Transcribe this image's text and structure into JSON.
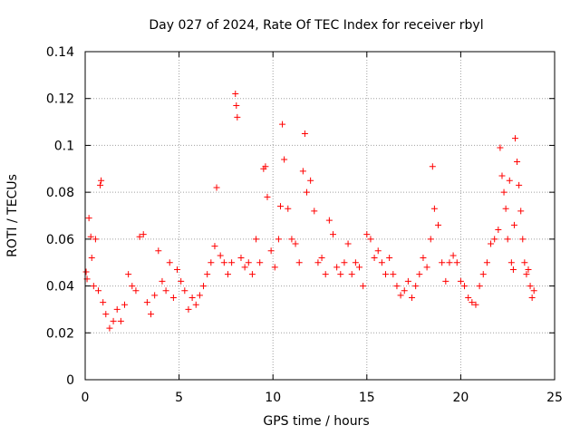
{
  "chart_data": {
    "type": "scatter",
    "title": "Day 027 of 2024, Rate Of TEC Index for receiver rbyl",
    "xlabel": "GPS time / hours",
    "ylabel": "ROTI / TECUs",
    "xlim": [
      0,
      25
    ],
    "ylim": [
      0,
      0.14
    ],
    "x_ticks": [
      0,
      5,
      10,
      15,
      20,
      25
    ],
    "x_tick_labels": [
      "0",
      "5",
      "10",
      "15",
      "20",
      "25"
    ],
    "y_ticks": [
      0,
      0.02,
      0.04,
      0.06,
      0.08,
      0.1,
      0.12,
      0.14
    ],
    "y_tick_labels": [
      "0",
      "0.02",
      "0.04",
      "0.06",
      "0.08",
      "0.1",
      "0.12",
      "0.14"
    ],
    "grid": true,
    "marker": "+",
    "series": [
      {
        "name": "ROTI",
        "color": "#ff0000",
        "x": [
          0.05,
          0.1,
          0.2,
          0.3,
          0.35,
          0.45,
          0.55,
          0.7,
          0.8,
          0.85,
          0.95,
          1.1,
          1.3,
          1.5,
          1.7,
          1.9,
          2.1,
          2.3,
          2.5,
          2.7,
          2.9,
          3.1,
          3.3,
          3.5,
          3.7,
          3.9,
          4.1,
          4.3,
          4.5,
          4.7,
          4.9,
          5.1,
          5.3,
          5.5,
          5.7,
          5.9,
          6.1,
          6.3,
          6.5,
          6.7,
          6.9,
          7.0,
          7.2,
          7.4,
          7.6,
          7.8,
          8.0,
          8.05,
          8.1,
          8.3,
          8.5,
          8.7,
          8.9,
          9.1,
          9.3,
          9.5,
          9.6,
          9.7,
          9.9,
          10.1,
          10.3,
          10.4,
          10.5,
          10.6,
          10.8,
          11.0,
          11.2,
          11.4,
          11.6,
          11.7,
          11.8,
          12.0,
          12.2,
          12.4,
          12.6,
          12.8,
          13.0,
          13.2,
          13.4,
          13.6,
          13.8,
          14.0,
          14.2,
          14.4,
          14.6,
          14.8,
          15.0,
          15.2,
          15.4,
          15.6,
          15.8,
          16.0,
          16.2,
          16.4,
          16.6,
          16.8,
          17.0,
          17.2,
          17.4,
          17.6,
          17.8,
          18.0,
          18.2,
          18.4,
          18.5,
          18.6,
          18.8,
          19.0,
          19.2,
          19.4,
          19.6,
          19.8,
          20.0,
          20.2,
          20.4,
          20.6,
          20.8,
          21.0,
          21.2,
          21.4,
          21.6,
          21.8,
          22.0,
          22.1,
          22.2,
          22.3,
          22.4,
          22.5,
          22.6,
          22.7,
          22.8,
          22.85,
          22.9,
          23.0,
          23.1,
          23.2,
          23.3,
          23.4,
          23.5,
          23.6,
          23.7,
          23.8,
          23.9
        ],
        "y": [
          0.046,
          0.043,
          0.069,
          0.061,
          0.052,
          0.04,
          0.06,
          0.038,
          0.083,
          0.085,
          0.033,
          0.028,
          0.022,
          0.025,
          0.03,
          0.025,
          0.032,
          0.045,
          0.04,
          0.038,
          0.061,
          0.062,
          0.033,
          0.028,
          0.036,
          0.055,
          0.042,
          0.038,
          0.05,
          0.035,
          0.047,
          0.042,
          0.038,
          0.03,
          0.035,
          0.032,
          0.036,
          0.04,
          0.045,
          0.05,
          0.057,
          0.082,
          0.053,
          0.05,
          0.045,
          0.05,
          0.122,
          0.117,
          0.112,
          0.052,
          0.048,
          0.05,
          0.045,
          0.06,
          0.05,
          0.09,
          0.091,
          0.078,
          0.055,
          0.048,
          0.06,
          0.074,
          0.109,
          0.094,
          0.073,
          0.06,
          0.058,
          0.05,
          0.089,
          0.105,
          0.08,
          0.085,
          0.072,
          0.05,
          0.052,
          0.045,
          0.068,
          0.062,
          0.048,
          0.045,
          0.05,
          0.058,
          0.045,
          0.05,
          0.048,
          0.04,
          0.062,
          0.06,
          0.052,
          0.055,
          0.05,
          0.045,
          0.052,
          0.045,
          0.04,
          0.036,
          0.038,
          0.042,
          0.035,
          0.04,
          0.045,
          0.052,
          0.048,
          0.06,
          0.091,
          0.073,
          0.066,
          0.05,
          0.042,
          0.05,
          0.053,
          0.05,
          0.042,
          0.04,
          0.035,
          0.033,
          0.032,
          0.04,
          0.045,
          0.05,
          0.058,
          0.06,
          0.064,
          0.099,
          0.087,
          0.08,
          0.073,
          0.06,
          0.085,
          0.05,
          0.047,
          0.066,
          0.103,
          0.093,
          0.083,
          0.072,
          0.06,
          0.05,
          0.045,
          0.047,
          0.04,
          0.035,
          0.038
        ]
      }
    ]
  }
}
